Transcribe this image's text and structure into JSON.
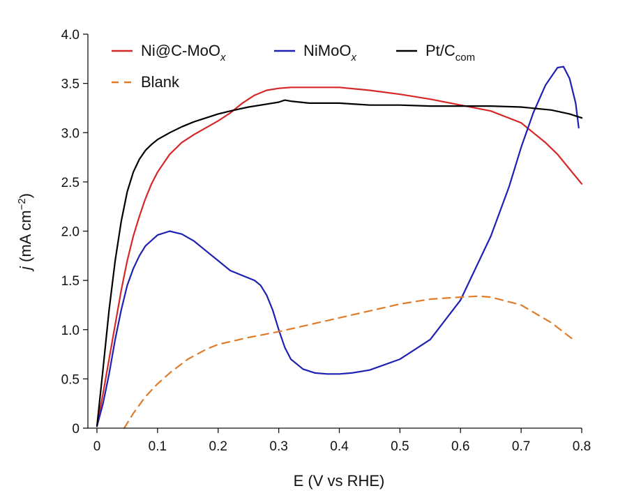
{
  "chart_data": {
    "type": "line",
    "title": "",
    "xlabel": "E (V vs RHE)",
    "ylabel": {
      "italic": "j",
      "rest": " (mA cm",
      "sup": "−2",
      "close": ")"
    },
    "xlim": [
      0,
      0.8
    ],
    "ylim": [
      0,
      4.0
    ],
    "xticks": [
      0,
      0.1,
      0.2,
      0.3,
      0.4,
      0.5,
      0.6,
      0.7,
      0.8
    ],
    "xtick_labels": [
      "0",
      "0.1",
      "0.2",
      "0.3",
      "0.4",
      "0.5",
      "0.6",
      "0.7",
      "0.8"
    ],
    "yticks": [
      0,
      0.5,
      1.0,
      1.5,
      2.0,
      2.5,
      3.0,
      3.5,
      4.0
    ],
    "ytick_labels": [
      "0",
      "0.5",
      "1.0",
      "1.5",
      "2.0",
      "2.5",
      "3.0",
      "3.5",
      "4.0"
    ],
    "grid": false,
    "legend_position": "top-left",
    "series": [
      {
        "name": {
          "main": "Ni@C-MoO",
          "sub": "x"
        },
        "color": "#d62728",
        "dash": "solid",
        "x": [
          0.0,
          0.01,
          0.02,
          0.03,
          0.04,
          0.05,
          0.06,
          0.07,
          0.08,
          0.09,
          0.1,
          0.12,
          0.14,
          0.16,
          0.18,
          0.2,
          0.22,
          0.24,
          0.26,
          0.28,
          0.3,
          0.32,
          0.35,
          0.4,
          0.45,
          0.5,
          0.55,
          0.6,
          0.65,
          0.7,
          0.72,
          0.74,
          0.76,
          0.78,
          0.8
        ],
        "y": [
          0.02,
          0.35,
          0.7,
          1.05,
          1.4,
          1.7,
          1.95,
          2.15,
          2.33,
          2.48,
          2.6,
          2.78,
          2.9,
          2.98,
          3.05,
          3.12,
          3.2,
          3.3,
          3.38,
          3.43,
          3.45,
          3.46,
          3.46,
          3.46,
          3.43,
          3.39,
          3.34,
          3.28,
          3.22,
          3.1,
          3.0,
          2.9,
          2.78,
          2.63,
          2.48
        ]
      },
      {
        "name": {
          "main": "NiMoO",
          "sub": "x"
        },
        "color": "#1f1fb4",
        "dash": "solid",
        "x": [
          0.0,
          0.01,
          0.02,
          0.03,
          0.04,
          0.05,
          0.06,
          0.07,
          0.08,
          0.1,
          0.12,
          0.14,
          0.16,
          0.18,
          0.2,
          0.22,
          0.24,
          0.26,
          0.27,
          0.28,
          0.29,
          0.3,
          0.31,
          0.32,
          0.34,
          0.36,
          0.38,
          0.4,
          0.42,
          0.45,
          0.5,
          0.55,
          0.6,
          0.65,
          0.68,
          0.7,
          0.72,
          0.74,
          0.76,
          0.77,
          0.78,
          0.79,
          0.795
        ],
        "y": [
          0.02,
          0.25,
          0.55,
          0.9,
          1.2,
          1.45,
          1.62,
          1.75,
          1.85,
          1.96,
          2.0,
          1.97,
          1.9,
          1.8,
          1.7,
          1.6,
          1.55,
          1.5,
          1.45,
          1.35,
          1.2,
          1.0,
          0.82,
          0.7,
          0.6,
          0.56,
          0.55,
          0.55,
          0.56,
          0.59,
          0.7,
          0.9,
          1.3,
          1.95,
          2.45,
          2.85,
          3.2,
          3.48,
          3.66,
          3.67,
          3.55,
          3.3,
          3.05
        ]
      },
      {
        "name": {
          "main": "Pt/C",
          "sub": "com"
        },
        "color": "#000000",
        "dash": "solid",
        "x": [
          0.0,
          0.01,
          0.02,
          0.03,
          0.04,
          0.05,
          0.06,
          0.07,
          0.08,
          0.09,
          0.1,
          0.12,
          0.14,
          0.16,
          0.18,
          0.2,
          0.22,
          0.25,
          0.28,
          0.3,
          0.31,
          0.32,
          0.35,
          0.4,
          0.45,
          0.5,
          0.55,
          0.6,
          0.65,
          0.7,
          0.75,
          0.78,
          0.8
        ],
        "y": [
          0.02,
          0.6,
          1.2,
          1.7,
          2.1,
          2.4,
          2.6,
          2.73,
          2.82,
          2.88,
          2.93,
          3.0,
          3.06,
          3.11,
          3.15,
          3.19,
          3.22,
          3.26,
          3.29,
          3.31,
          3.33,
          3.32,
          3.3,
          3.3,
          3.28,
          3.28,
          3.27,
          3.27,
          3.27,
          3.26,
          3.23,
          3.19,
          3.15
        ]
      },
      {
        "name": {
          "main": "Blank",
          "sub": ""
        },
        "color": "#e07b28",
        "dash": "dashed",
        "x": [
          0.045,
          0.05,
          0.06,
          0.08,
          0.1,
          0.12,
          0.15,
          0.18,
          0.2,
          0.25,
          0.3,
          0.35,
          0.4,
          0.45,
          0.5,
          0.55,
          0.6,
          0.63,
          0.65,
          0.7,
          0.75,
          0.79
        ],
        "y": [
          0.0,
          0.05,
          0.15,
          0.32,
          0.45,
          0.56,
          0.7,
          0.8,
          0.85,
          0.92,
          0.98,
          1.05,
          1.12,
          1.19,
          1.26,
          1.31,
          1.33,
          1.34,
          1.33,
          1.25,
          1.07,
          0.88
        ]
      }
    ]
  }
}
